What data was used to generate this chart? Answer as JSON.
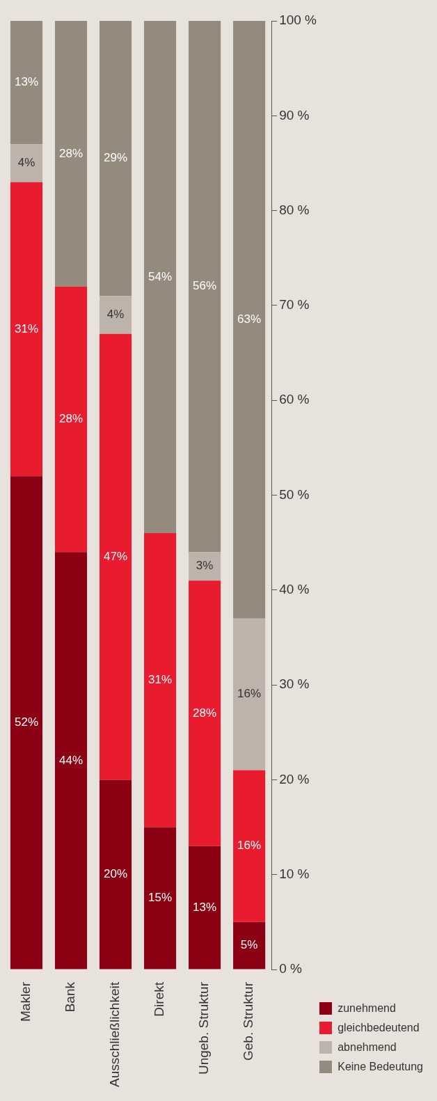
{
  "chart_data": {
    "type": "bar",
    "stacked": true,
    "categories": [
      "Makler",
      "Bank",
      "Ausschließlichkeit",
      "Direkt",
      "Ungeb. Struktur",
      "Geb. Struktur"
    ],
    "series": [
      {
        "name": "zunehmend",
        "color": "#8b0012",
        "values": [
          52,
          44,
          20,
          15,
          13,
          5
        ],
        "value_labels": [
          "52%",
          "44%",
          "20%",
          "15%",
          "13%",
          "5%"
        ]
      },
      {
        "name": "gleichbedeutend",
        "color": "#e81c2e",
        "values": [
          31,
          28,
          47,
          31,
          28,
          16
        ],
        "value_labels": [
          "31%",
          "28%",
          "47%",
          "31%",
          "28%",
          "16%"
        ]
      },
      {
        "name": "abnehmend",
        "color": "#bdb3aa",
        "values": [
          4,
          0,
          4,
          0,
          3,
          16
        ],
        "value_labels": [
          "4%",
          null,
          "4%",
          null,
          "3%",
          "16%"
        ]
      },
      {
        "name": "Keine Bedeutung",
        "color": "#958a7e",
        "values": [
          13,
          28,
          29,
          54,
          56,
          63
        ],
        "value_labels": [
          "13%",
          "28%",
          "29%",
          "54%",
          "56%",
          "63%"
        ]
      }
    ],
    "ylim": [
      0,
      100
    ],
    "yticks": [
      {
        "value": 0,
        "label": "0 %"
      },
      {
        "value": 10,
        "label": "10 %"
      },
      {
        "value": 20,
        "label": "20 %"
      },
      {
        "value": 30,
        "label": "30 %"
      },
      {
        "value": 40,
        "label": "40 %"
      },
      {
        "value": 50,
        "label": "50 %"
      },
      {
        "value": 60,
        "label": "60 %"
      },
      {
        "value": 70,
        "label": "70 %"
      },
      {
        "value": 80,
        "label": "80 %"
      },
      {
        "value": 90,
        "label": "90 %"
      },
      {
        "value": 100,
        "label": "100 %"
      }
    ],
    "grid": false,
    "legend": "right"
  }
}
